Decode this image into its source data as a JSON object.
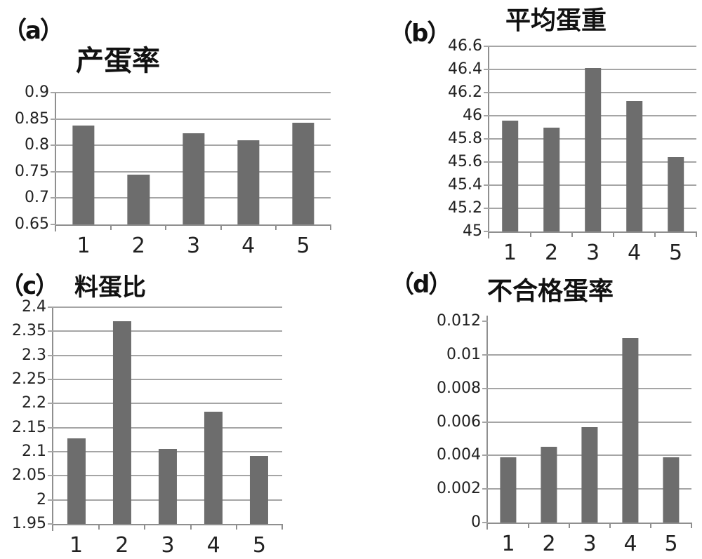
{
  "figure": {
    "background": "#ffffff",
    "bar_color": "#6d6d6d",
    "grid_color": "#a5a5a5",
    "axis_color": "#8f8f8f",
    "text_color": "#212121"
  },
  "chart_data": [
    {
      "id": "a",
      "panel_label": "（a）",
      "title": "产蛋率",
      "type": "bar",
      "categories": [
        "1",
        "2",
        "3",
        "4",
        "5"
      ],
      "values": [
        0.838,
        0.744,
        0.823,
        0.809,
        0.843
      ],
      "ylim": [
        0.65,
        0.9
      ],
      "yticks": [
        "0.9",
        "0.85",
        "0.8",
        "0.75",
        "0.7",
        "0.65"
      ],
      "xlabel": "",
      "ylabel": "",
      "grid": true,
      "top_gridline": true,
      "legend": "none"
    },
    {
      "id": "b",
      "panel_label": "（b）",
      "title": "平均蛋重",
      "type": "bar",
      "categories": [
        "1",
        "2",
        "3",
        "4",
        "5"
      ],
      "values": [
        45.96,
        45.9,
        46.41,
        46.13,
        45.64
      ],
      "ylim": [
        45,
        46.6
      ],
      "yticks": [
        "46.6",
        "46.4",
        "46.2",
        "46",
        "45.8",
        "45.6",
        "45.4",
        "45.2",
        "45"
      ],
      "xlabel": "",
      "ylabel": "",
      "grid": true,
      "top_gridline": true,
      "legend": "none"
    },
    {
      "id": "c",
      "panel_label": "（c）",
      "title": "料蛋比",
      "type": "bar",
      "categories": [
        "1",
        "2",
        "3",
        "4",
        "5"
      ],
      "values": [
        2.128,
        2.371,
        2.106,
        2.183,
        2.091
      ],
      "ylim": [
        1.95,
        2.4
      ],
      "yticks": [
        "2.4",
        "2.35",
        "2.3",
        "2.25",
        "2.2",
        "2.15",
        "2.1",
        "2.05",
        "2",
        "1.95"
      ],
      "xlabel": "",
      "ylabel": "",
      "grid": true,
      "top_gridline": true,
      "legend": "none"
    },
    {
      "id": "d",
      "panel_label": "（d）",
      "title": "不合格蛋率",
      "type": "bar",
      "categories": [
        "1",
        "2",
        "3",
        "4",
        "5"
      ],
      "values": [
        0.0039,
        0.0045,
        0.0057,
        0.011,
        0.0039
      ],
      "ylim": [
        0,
        0.012
      ],
      "yticks": [
        "0.012",
        "0.01",
        "0.008",
        "0.006",
        "0.004",
        "0.002",
        "0"
      ],
      "xlabel": "",
      "ylabel": "",
      "grid": true,
      "top_gridline": false,
      "legend": "none"
    }
  ]
}
